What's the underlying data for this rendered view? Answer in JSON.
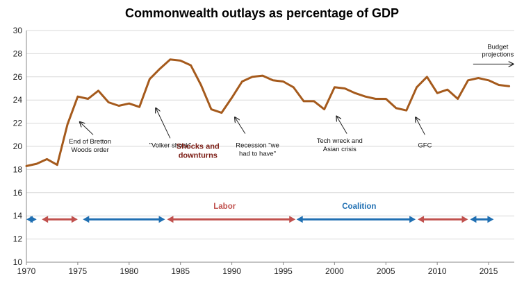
{
  "chart_data": {
    "type": "line",
    "title": "Commonwealth outlays as percentage of GDP",
    "xlabel": "",
    "ylabel": "",
    "xlim": [
      1970,
      2017.5
    ],
    "ylim": [
      10,
      30
    ],
    "grid": "horizontal",
    "line_color": "#a55a1c",
    "x_ticks": [
      "1970",
      "1975",
      "1980",
      "1985",
      "1990",
      "1995",
      "2000",
      "2005",
      "2010",
      "2015"
    ],
    "y_ticks": [
      "10",
      "12",
      "14",
      "16",
      "18",
      "20",
      "22",
      "24",
      "26",
      "28",
      "30"
    ],
    "series": [
      {
        "x": [
          1970,
          1971,
          1972,
          1973,
          1974,
          1975,
          1976,
          1977,
          1978,
          1979,
          1980,
          1981,
          1982,
          1983,
          1984,
          1985,
          1986,
          1987,
          1988,
          1989,
          1990,
          1991,
          1992,
          1993,
          1994,
          1995,
          1996,
          1997,
          1998,
          1999,
          2000,
          2001,
          2002,
          2003,
          2004,
          2005,
          2006,
          2007,
          2008,
          2009,
          2010,
          2011,
          2012,
          2013,
          2014,
          2015,
          2016,
          2017
        ],
        "values": [
          18.3,
          18.5,
          18.9,
          18.4,
          21.9,
          24.3,
          24.1,
          24.8,
          23.8,
          23.5,
          23.7,
          23.4,
          25.8,
          26.7,
          27.5,
          27.4,
          27.0,
          25.3,
          23.2,
          22.9,
          24.2,
          25.6,
          26.0,
          26.1,
          25.7,
          25.6,
          25.1,
          23.9,
          23.9,
          23.2,
          25.1,
          25.0,
          24.6,
          24.3,
          24.1,
          24.1,
          23.3,
          23.1,
          25.1,
          26.0,
          24.6,
          24.9,
          24.1,
          25.7,
          25.9,
          25.7,
          25.3,
          25.2
        ]
      }
    ],
    "annotations": [
      {
        "id": "bretton",
        "lines": [
          "End of Bretton",
          "Woods order"
        ],
        "arrow_from": [
          1976.5,
          21.0
        ],
        "arrow_to": [
          1975.2,
          22.1
        ]
      },
      {
        "id": "volker",
        "lines": [
          "\"Volker shock\""
        ],
        "arrow_from": [
          1984.0,
          20.7
        ],
        "arrow_to": [
          1982.6,
          23.3
        ]
      },
      {
        "id": "recession",
        "lines": [
          "Recession \"we",
          "had to have\""
        ],
        "arrow_from": [
          1991.3,
          21.1
        ],
        "arrow_to": [
          1990.3,
          22.5
        ]
      },
      {
        "id": "techwreck",
        "lines": [
          "Tech wreck and",
          "Asian crisis"
        ],
        "arrow_from": [
          2001.2,
          21.1
        ],
        "arrow_to": [
          2000.2,
          22.6
        ]
      },
      {
        "id": "gfc",
        "lines": [
          "GFC"
        ],
        "arrow_from": [
          2008.8,
          21.0
        ],
        "arrow_to": [
          2007.9,
          22.5
        ]
      }
    ],
    "shocks_label": [
      "Shocks and",
      "downturns"
    ],
    "budget_label": [
      "Budget",
      "projections"
    ],
    "governments": [
      {
        "party": "Coalition",
        "start": 1970.0,
        "end": 1971.0,
        "color": "#1f6fb2"
      },
      {
        "party": "Labor",
        "start": 1971.5,
        "end": 1975.0,
        "color": "#c0504d"
      },
      {
        "party": "Coalition",
        "start": 1975.5,
        "end": 1983.5,
        "color": "#1f6fb2"
      },
      {
        "party": "Labor",
        "start": 1983.7,
        "end": 1996.2,
        "color": "#c0504d"
      },
      {
        "party": "Coalition",
        "start": 1996.3,
        "end": 2007.9,
        "color": "#1f6fb2"
      },
      {
        "party": "Labor",
        "start": 2008.1,
        "end": 2013.0,
        "color": "#c0504d"
      },
      {
        "party": "Coalition",
        "start": 2013.2,
        "end": 2015.5,
        "color": "#1f6fb2"
      }
    ],
    "period_labels": [
      {
        "text": "Labor",
        "color": "#c0504d",
        "x": 1989.3
      },
      {
        "text": "Coalition",
        "color": "#1f6fb2",
        "x": 2002.4
      }
    ]
  }
}
